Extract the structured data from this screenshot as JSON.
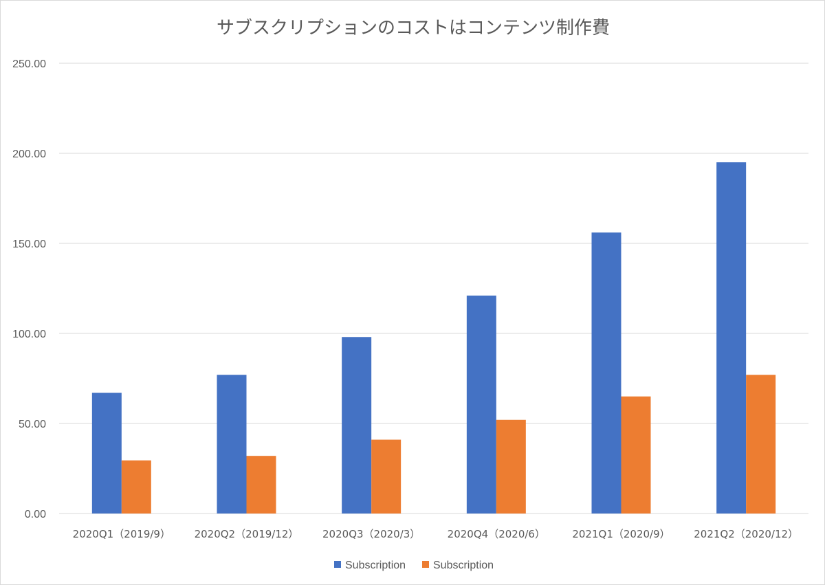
{
  "chart_data": {
    "type": "bar",
    "title": "サブスクリプションのコストはコンテンツ制作費",
    "xlabel": "",
    "ylabel": "",
    "ylim": [
      0,
      250
    ],
    "y_ticks": [
      "0.00",
      "50.00",
      "100.00",
      "150.00",
      "200.00",
      "250.00"
    ],
    "grid": true,
    "legend_position": "bottom",
    "categories": [
      "2020Q1（2019/9）",
      "2020Q2（2019/12）",
      "2020Q3（2020/3）",
      "2020Q4（2020/6）",
      "2021Q1（2020/9）",
      "2021Q2（2020/12）"
    ],
    "series": [
      {
        "name": "Subscription",
        "color": "#4472c4",
        "values": [
          67,
          77,
          98,
          121,
          156,
          195
        ]
      },
      {
        "name": "Subscription",
        "color": "#ed7d31",
        "values": [
          29.5,
          32,
          41,
          52,
          65,
          77
        ]
      }
    ]
  }
}
